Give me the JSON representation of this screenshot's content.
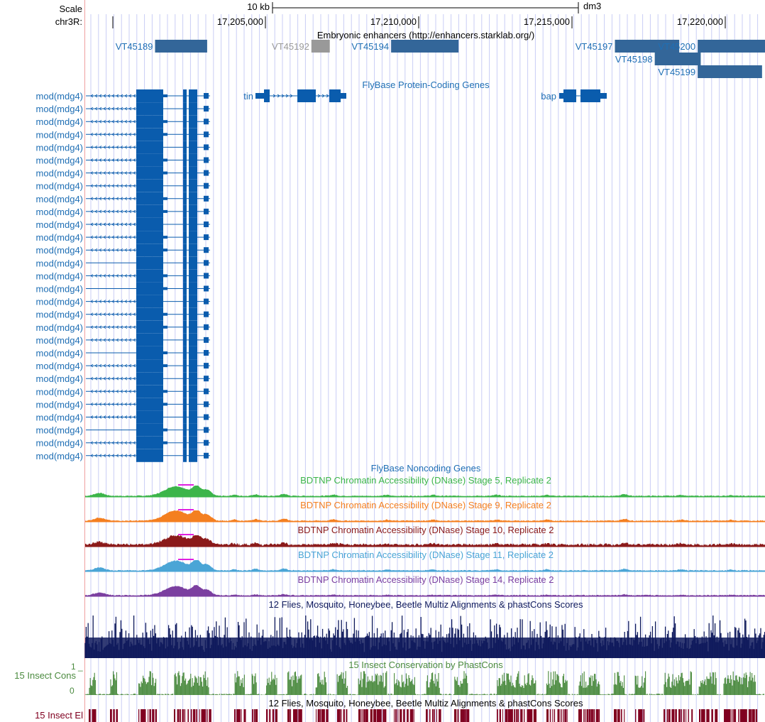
{
  "ruler": {
    "scale_label": "Scale",
    "scale_size": "10 kb",
    "assembly": "dm3",
    "chrom_label": "chr3R:",
    "positions": [
      {
        "label": "17,205,000",
        "pos": 17205000
      },
      {
        "label": "17,210,000",
        "pos": 17210000
      },
      {
        "label": "17,215,000",
        "pos": 17215000
      },
      {
        "label": "17,220,000",
        "pos": 17220000
      }
    ]
  },
  "enhancers": {
    "title": "Embryonic enhancers (http://enhancers.starklab.org/)",
    "items": [
      {
        "name": "VT45189",
        "start": 17201400,
        "end": 17203100,
        "row": 0,
        "color": "#336699"
      },
      {
        "name": "VT45192",
        "start": 17206500,
        "end": 17207100,
        "row": 0,
        "color": "#999999"
      },
      {
        "name": "VT45194",
        "start": 17209100,
        "end": 17211300,
        "row": 0,
        "color": "#336699"
      },
      {
        "name": "VT45197",
        "start": 17216400,
        "end": 17218500,
        "row": 0,
        "color": "#336699"
      },
      {
        "name": "VT45200",
        "start": 17219100,
        "end": 17221300,
        "row": 0,
        "color": "#336699"
      },
      {
        "name": "VT45198",
        "start": 17217700,
        "end": 17219200,
        "row": 1,
        "color": "#336699"
      },
      {
        "name": "VT45199",
        "start": 17219100,
        "end": 17221200,
        "row": 2,
        "color": "#336699"
      }
    ]
  },
  "protein_genes": {
    "title": "FlyBase Protein-Coding Genes",
    "mod_label": "mod(mdg4)",
    "mod_transcript_count": 29,
    "tin_label": "tin",
    "bap_label": "bap"
  },
  "noncoding": {
    "title": "FlyBase Noncoding Genes"
  },
  "dnase_tracks": [
    {
      "title": "BDTNP Chromatin Accessibility (DNase) Stage 5, Replicate 2",
      "color": "#3cb54a",
      "peak": 0.85
    },
    {
      "title": "BDTNP Chromatin Accessibility (DNase) Stage 9, Replicate 2",
      "color": "#f47f20",
      "peak": 0.9
    },
    {
      "title": "BDTNP Chromatin Accessibility (DNase) Stage 10, Replicate 2",
      "color": "#8b1a1a",
      "peak": 0.8
    },
    {
      "title": "BDTNP Chromatin Accessibility (DNase) Stage 11, Replicate 2",
      "color": "#4aa5d6",
      "peak": 0.85
    },
    {
      "title": "BDTNP Chromatin Accessibility (DNase) Stage 14, Replicate 2",
      "color": "#7b3fa0",
      "peak": 0.8
    }
  ],
  "multiz": {
    "title": "12 Flies, Mosquito, Honeybee, Beetle Multiz Alignments & phastCons Scores",
    "color": "#0f1a5c"
  },
  "insect_cons": {
    "title": "15 Insect Conservation by PhastCons",
    "label": "15 Insect Cons",
    "ymax_label": "1 _",
    "ymin_label": "0",
    "color": "#4a8a3e"
  },
  "insect_el": {
    "title": "12 Flies, Mosquito, Honeybee, Beetle Multiz Alignments & phastCons Scores",
    "label": "15 Insect El",
    "color": "#800020"
  },
  "colors": {
    "gene": "#0a5cad",
    "label_blue": "#1f6fb5",
    "guide": "#c9cdf5",
    "left_guide": "#f0a0a0",
    "saturation": "#e020e0"
  }
}
